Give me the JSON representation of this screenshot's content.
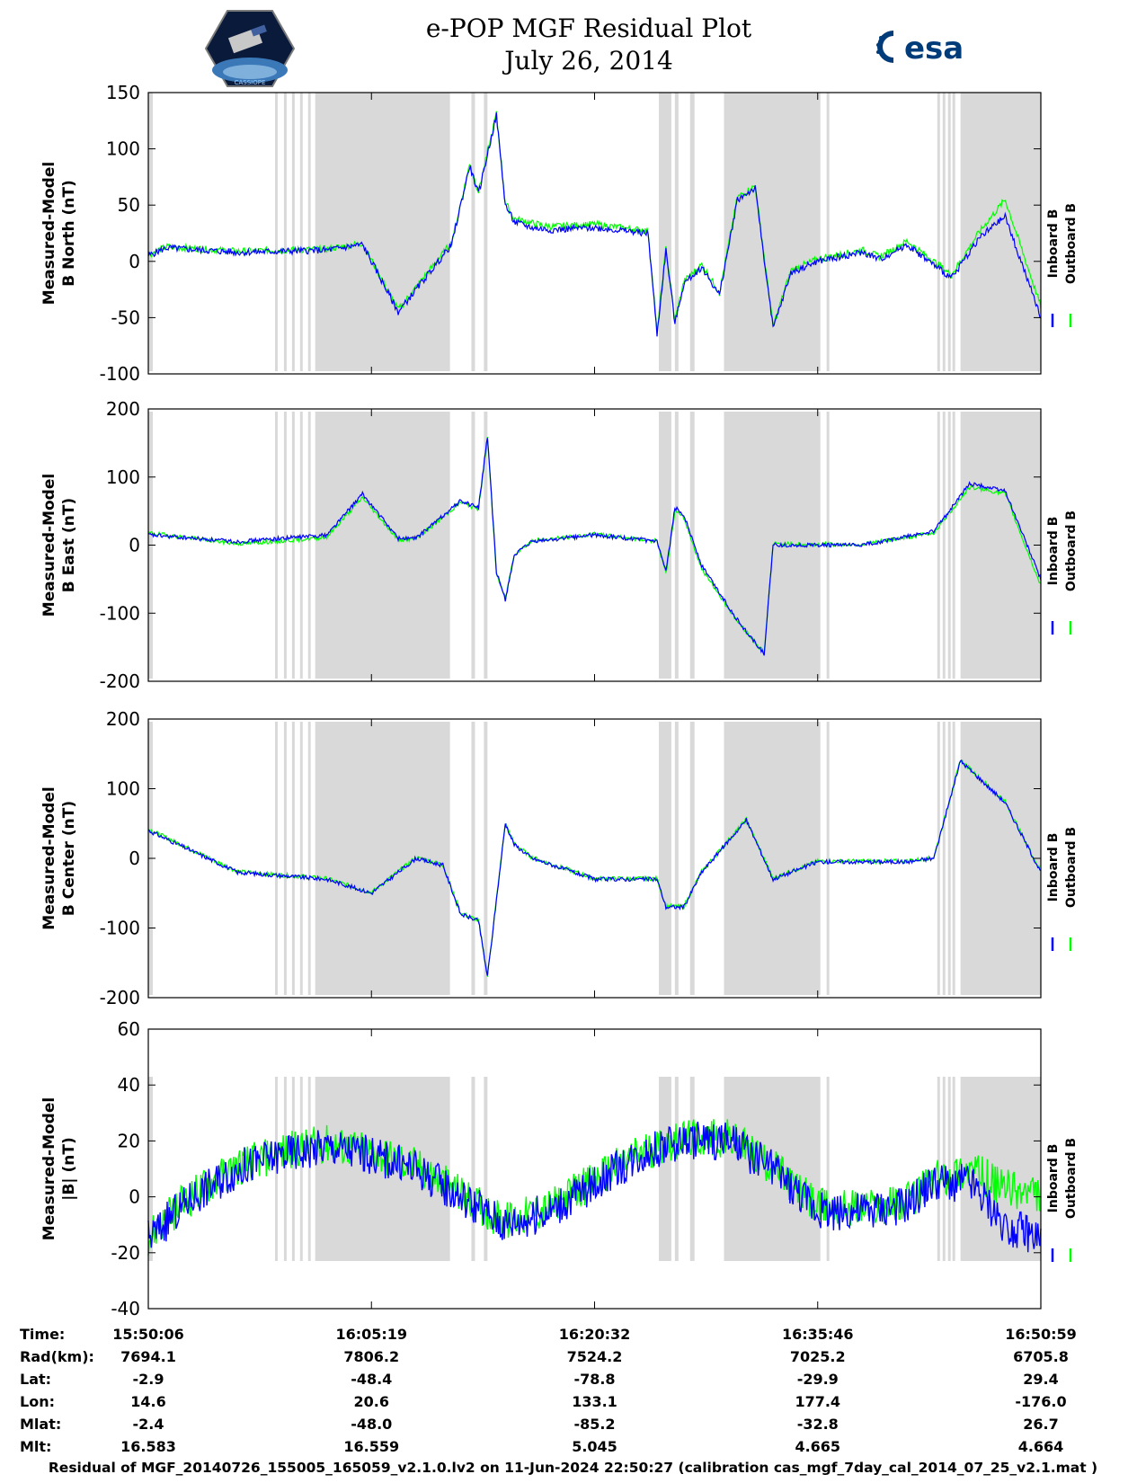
{
  "header": {
    "title_line1": "e-POP MGF Residual Plot",
    "title_line2": "July 26, 2014",
    "left_logo_text": "CASSIOPE",
    "right_logo_text": "esa"
  },
  "colors": {
    "inboard": "#0000ff",
    "outboard": "#00ff00",
    "shading": "#d9d9d9",
    "axis": "#000000"
  },
  "chart_data": [
    {
      "type": "line",
      "ylabel": [
        "Measured-Model",
        "B North (nT)"
      ],
      "ylim": [
        -100,
        150
      ],
      "yticks": [
        -100,
        -50,
        0,
        50,
        100,
        150
      ],
      "legend": [
        "Inboard B",
        "Outboard B"
      ],
      "legend_position": "right",
      "series": [
        {
          "name": "Inboard B",
          "x": [
            0,
            0.02,
            0.1,
            0.2,
            0.24,
            0.28,
            0.3,
            0.34,
            0.36,
            0.37,
            0.39,
            0.4,
            0.41,
            0.43,
            0.45,
            0.5,
            0.56,
            0.57,
            0.58,
            0.59,
            0.6,
            0.62,
            0.64,
            0.66,
            0.68,
            0.7,
            0.72,
            0.75,
            0.78,
            0.8,
            0.82,
            0.85,
            0.9,
            0.93,
            0.96,
            1.0
          ],
          "y": [
            5,
            12,
            8,
            10,
            15,
            -45,
            -25,
            15,
            85,
            60,
            130,
            50,
            35,
            30,
            28,
            30,
            25,
            -65,
            10,
            -55,
            -20,
            -5,
            -30,
            55,
            65,
            -60,
            -10,
            0,
            5,
            8,
            2,
            15,
            -15,
            20,
            40,
            -50
          ]
        },
        {
          "name": "Outboard B",
          "x": [
            0,
            0.02,
            0.1,
            0.2,
            0.24,
            0.28,
            0.3,
            0.34,
            0.36,
            0.37,
            0.39,
            0.4,
            0.41,
            0.43,
            0.45,
            0.5,
            0.56,
            0.57,
            0.58,
            0.59,
            0.6,
            0.62,
            0.64,
            0.66,
            0.68,
            0.7,
            0.72,
            0.75,
            0.78,
            0.8,
            0.82,
            0.85,
            0.9,
            0.93,
            0.96,
            1.0
          ],
          "y": [
            6,
            13,
            9,
            11,
            16,
            -43,
            -23,
            17,
            86,
            62,
            131,
            52,
            38,
            34,
            31,
            33,
            27,
            -63,
            12,
            -53,
            -18,
            -3,
            -28,
            57,
            67,
            -58,
            -8,
            2,
            7,
            10,
            4,
            18,
            -12,
            25,
            55,
            -40
          ]
        }
      ]
    },
    {
      "type": "line",
      "ylabel": [
        "Measured-Model",
        "B East (nT)"
      ],
      "ylim": [
        -200,
        200
      ],
      "yticks": [
        -200,
        -100,
        0,
        100,
        200
      ],
      "legend": [
        "Inboard B",
        "Outboard B"
      ],
      "legend_position": "right",
      "series": [
        {
          "name": "Inboard B",
          "x": [
            0,
            0.1,
            0.15,
            0.2,
            0.24,
            0.28,
            0.3,
            0.35,
            0.37,
            0.38,
            0.39,
            0.4,
            0.41,
            0.43,
            0.5,
            0.57,
            0.58,
            0.59,
            0.6,
            0.62,
            0.66,
            0.69,
            0.7,
            0.73,
            0.8,
            0.88,
            0.92,
            0.96,
            1.0
          ],
          "y": [
            15,
            5,
            10,
            15,
            75,
            10,
            10,
            65,
            55,
            160,
            -40,
            -80,
            -15,
            5,
            15,
            5,
            -40,
            55,
            45,
            -30,
            -110,
            -160,
            0,
            0,
            0,
            20,
            90,
            80,
            -50
          ]
        },
        {
          "name": "Outboard B",
          "x": [
            0,
            0.1,
            0.15,
            0.2,
            0.24,
            0.28,
            0.3,
            0.35,
            0.37,
            0.38,
            0.39,
            0.4,
            0.41,
            0.43,
            0.5,
            0.57,
            0.58,
            0.59,
            0.6,
            0.62,
            0.66,
            0.69,
            0.7,
            0.73,
            0.8,
            0.88,
            0.92,
            0.96,
            1.0
          ],
          "y": [
            18,
            2,
            6,
            12,
            70,
            8,
            9,
            63,
            53,
            158,
            -42,
            -78,
            -13,
            6,
            16,
            6,
            -42,
            50,
            40,
            -35,
            -112,
            -158,
            2,
            1,
            1,
            18,
            85,
            76,
            -60
          ]
        }
      ]
    },
    {
      "type": "line",
      "ylabel": [
        "Measured-Model",
        "B Center (nT)"
      ],
      "ylim": [
        -200,
        200
      ],
      "yticks": [
        -200,
        -100,
        0,
        100,
        200
      ],
      "legend": [
        "Inboard B",
        "Outboard B"
      ],
      "legend_position": "right",
      "series": [
        {
          "name": "Inboard B",
          "x": [
            0,
            0.1,
            0.2,
            0.25,
            0.3,
            0.33,
            0.35,
            0.37,
            0.38,
            0.4,
            0.41,
            0.43,
            0.5,
            0.57,
            0.58,
            0.6,
            0.62,
            0.67,
            0.7,
            0.75,
            0.85,
            0.88,
            0.91,
            0.96,
            1.0
          ],
          "y": [
            40,
            -20,
            -30,
            -50,
            0,
            -10,
            -80,
            -90,
            -170,
            50,
            20,
            0,
            -30,
            -30,
            -70,
            -70,
            -20,
            55,
            -30,
            -5,
            -5,
            0,
            140,
            80,
            -20
          ]
        },
        {
          "name": "Outboard B",
          "x": [
            0,
            0.1,
            0.2,
            0.25,
            0.3,
            0.33,
            0.35,
            0.37,
            0.38,
            0.4,
            0.41,
            0.43,
            0.5,
            0.57,
            0.58,
            0.6,
            0.62,
            0.67,
            0.7,
            0.75,
            0.85,
            0.88,
            0.91,
            0.96,
            1.0
          ],
          "y": [
            42,
            -19,
            -29,
            -49,
            1,
            -9,
            -79,
            -89,
            -169,
            51,
            21,
            1,
            -29,
            -29,
            -69,
            -69,
            -19,
            56,
            -29,
            -4,
            -4,
            1,
            141,
            81,
            -19
          ]
        }
      ]
    },
    {
      "type": "line",
      "ylabel": [
        "Measured-Model",
        "|B| (nT)"
      ],
      "ylim": [
        -40,
        60
      ],
      "yticks": [
        -40,
        -20,
        0,
        20,
        40,
        60
      ],
      "legend": [
        "Inboard B",
        "Outboard B"
      ],
      "legend_position": "right",
      "series": [
        {
          "name": "Inboard B",
          "x": [
            0,
            0.05,
            0.1,
            0.15,
            0.2,
            0.25,
            0.3,
            0.35,
            0.4,
            0.45,
            0.5,
            0.55,
            0.6,
            0.65,
            0.7,
            0.75,
            0.8,
            0.85,
            0.88,
            0.92,
            0.96,
            1.0
          ],
          "y": [
            -15,
            0,
            10,
            15,
            18,
            15,
            10,
            0,
            -10,
            -5,
            5,
            15,
            20,
            20,
            10,
            -5,
            -5,
            -3,
            5,
            5,
            -10,
            -15
          ]
        },
        {
          "name": "Outboard B",
          "x": [
            0,
            0.05,
            0.1,
            0.15,
            0.2,
            0.25,
            0.3,
            0.35,
            0.4,
            0.45,
            0.5,
            0.55,
            0.6,
            0.65,
            0.7,
            0.75,
            0.8,
            0.85,
            0.88,
            0.92,
            0.96,
            1.0
          ],
          "y": [
            -14,
            1,
            11,
            16,
            19,
            16,
            11,
            1,
            -9,
            -4,
            6,
            16,
            21,
            21,
            11,
            -4,
            -4,
            -2,
            6,
            10,
            3,
            0
          ]
        }
      ]
    }
  ],
  "shaded_intervals": [
    [
      0,
      0.005
    ],
    [
      0.142,
      0.145
    ],
    [
      0.152,
      0.155
    ],
    [
      0.161,
      0.164
    ],
    [
      0.17,
      0.173
    ],
    [
      0.179,
      0.182
    ],
    [
      0.187,
      0.338
    ],
    [
      0.362,
      0.366
    ],
    [
      0.376,
      0.38
    ],
    [
      0.572,
      0.586
    ],
    [
      0.59,
      0.594
    ],
    [
      0.607,
      0.612
    ],
    [
      0.645,
      0.753
    ],
    [
      0.76,
      0.763
    ],
    [
      0.884,
      0.887
    ],
    [
      0.89,
      0.893
    ],
    [
      0.896,
      0.899
    ],
    [
      0.901,
      0.904
    ],
    [
      0.91,
      1.0
    ]
  ],
  "ephemeris": {
    "row_labels": [
      "Time:",
      "Rad(km):",
      "Lat:",
      "Lon:",
      "Mlat:",
      "Mlt:"
    ],
    "columns": [
      [
        "15:50:06",
        "7694.1",
        "-2.9",
        "14.6",
        "-2.4",
        "16.583"
      ],
      [
        "16:05:19",
        "7806.2",
        "-48.4",
        "20.6",
        "-48.0",
        "16.559"
      ],
      [
        "16:20:32",
        "7524.2",
        "-78.8",
        "133.1",
        "-85.2",
        "5.045"
      ],
      [
        "16:35:46",
        "7025.2",
        "-29.9",
        "177.4",
        "-32.8",
        "4.665"
      ],
      [
        "16:50:59",
        "6705.8",
        "29.4",
        "-176.0",
        "26.7",
        "4.664"
      ]
    ]
  },
  "footer": "Residual of MGF_20140726_155005_165059_v2.1.0.lv2 on 11-Jun-2024 22:50:27 (calibration cas_mgf_7day_cal_2014_07_25_v2.1.mat )"
}
